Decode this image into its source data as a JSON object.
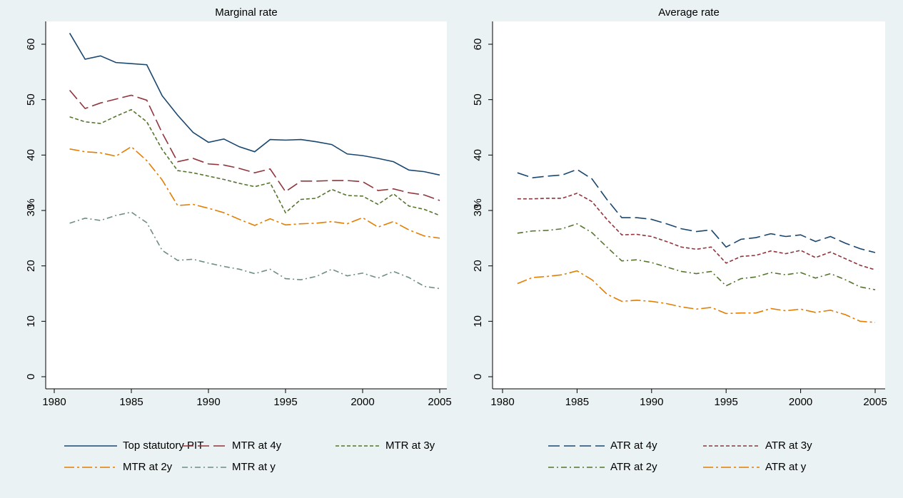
{
  "chart_data": [
    {
      "type": "line",
      "title": "Marginal rate",
      "ylabel": "%",
      "x": [
        1981,
        1982,
        1983,
        1984,
        1985,
        1986,
        1987,
        1988,
        1989,
        1990,
        1991,
        1992,
        1993,
        1994,
        1995,
        1996,
        1997,
        1998,
        1999,
        2000,
        2001,
        2002,
        2003,
        2004,
        2005
      ],
      "xlim": [
        1980,
        2005
      ],
      "ylim": [
        0,
        60
      ],
      "xticks": [
        1980,
        1985,
        1990,
        1995,
        2000,
        2005
      ],
      "yticks": [
        0,
        10,
        20,
        30,
        40,
        50,
        60
      ],
      "series": [
        {
          "name": "Top statutory PIT",
          "color": "#1a476f",
          "dash": "solid",
          "values": [
            62,
            57.3,
            57.9,
            56.7,
            56.5,
            56.3,
            50.7,
            47.2,
            44.1,
            42.3,
            42.9,
            41.5,
            40.6,
            42.8,
            42.7,
            42.8,
            42.4,
            41.9,
            40.2,
            39.9,
            39.4,
            38.8,
            37.3,
            37.0,
            36.4
          ]
        },
        {
          "name": "MTR at 4y",
          "color": "#90353b",
          "dash": "longdash",
          "values": [
            51.7,
            48.4,
            49.4,
            50.1,
            50.8,
            49.9,
            44.0,
            38.8,
            39.4,
            38.4,
            38.2,
            37.6,
            36.8,
            37.5,
            33.4,
            35.3,
            35.3,
            35.4,
            35.4,
            35.2,
            33.6,
            33.9,
            33.2,
            32.8,
            31.8
          ]
        },
        {
          "name": "MTR at 3y",
          "color": "#55752f",
          "dash": "dash",
          "values": [
            46.9,
            46.0,
            45.7,
            47.0,
            48.2,
            46.0,
            41.0,
            37.2,
            36.8,
            36.2,
            35.6,
            34.9,
            34.3,
            35.0,
            29.6,
            32.0,
            32.2,
            33.8,
            32.7,
            32.6,
            31.1,
            33.0,
            30.8,
            30.2,
            29.1
          ]
        },
        {
          "name": "MTR at 2y",
          "color": "#e37e00",
          "dash": "longdashdot",
          "values": [
            41.1,
            40.6,
            40.4,
            39.8,
            41.5,
            39.0,
            35.5,
            30.9,
            31.1,
            30.4,
            29.6,
            28.4,
            27.3,
            28.5,
            27.4,
            27.6,
            27.7,
            28.0,
            27.6,
            28.7,
            27.0,
            28.0,
            26.5,
            25.4,
            25.0
          ]
        },
        {
          "name": "MTR at y",
          "color": "#6e8e84",
          "dash": "dashdot",
          "values": [
            27.7,
            28.6,
            28.2,
            29.1,
            29.7,
            27.8,
            22.8,
            21.0,
            21.2,
            20.5,
            19.9,
            19.4,
            18.6,
            19.4,
            17.7,
            17.5,
            18.1,
            19.4,
            18.2,
            18.7,
            17.8,
            19.0,
            17.9,
            16.3,
            15.9
          ]
        }
      ]
    },
    {
      "type": "line",
      "title": "Average rate",
      "ylabel": "%",
      "x": [
        1981,
        1982,
        1983,
        1984,
        1985,
        1986,
        1987,
        1988,
        1989,
        1990,
        1991,
        1992,
        1993,
        1994,
        1995,
        1996,
        1997,
        1998,
        1999,
        2000,
        2001,
        2002,
        2003,
        2004,
        2005
      ],
      "xlim": [
        1980,
        2005
      ],
      "ylim": [
        0,
        60
      ],
      "xticks": [
        1980,
        1985,
        1990,
        1995,
        2000,
        2005
      ],
      "yticks": [
        0,
        10,
        20,
        30,
        40,
        50,
        60
      ],
      "series": [
        {
          "name": "ATR at 4y",
          "color": "#1a476f",
          "dash": "longdash",
          "values": [
            36.8,
            35.9,
            36.2,
            36.4,
            37.4,
            35.7,
            32.0,
            28.7,
            28.7,
            28.4,
            27.6,
            26.7,
            26.2,
            26.5,
            23.4,
            24.8,
            25.1,
            25.8,
            25.3,
            25.6,
            24.4,
            25.3,
            24.1,
            23.1,
            22.4
          ]
        },
        {
          "name": "ATR at 3y",
          "color": "#90353b",
          "dash": "dash",
          "values": [
            32.1,
            32.1,
            32.2,
            32.2,
            33.1,
            31.6,
            28.4,
            25.6,
            25.7,
            25.3,
            24.4,
            23.4,
            23.0,
            23.4,
            20.5,
            21.7,
            21.9,
            22.7,
            22.2,
            22.8,
            21.5,
            22.5,
            21.3,
            20.1,
            19.3
          ]
        },
        {
          "name": "ATR at 2y",
          "color": "#55752f",
          "dash": "dashdot",
          "values": [
            25.9,
            26.3,
            26.4,
            26.7,
            27.6,
            26.0,
            23.4,
            20.9,
            21.1,
            20.6,
            19.8,
            19.0,
            18.6,
            19.0,
            16.4,
            17.7,
            18.0,
            18.8,
            18.4,
            18.8,
            17.8,
            18.6,
            17.5,
            16.2,
            15.7
          ]
        },
        {
          "name": "ATR at y",
          "color": "#e37e00",
          "dash": "longdashdot",
          "values": [
            16.8,
            17.9,
            18.1,
            18.4,
            19.1,
            17.5,
            14.9,
            13.6,
            13.8,
            13.6,
            13.2,
            12.6,
            12.2,
            12.5,
            11.4,
            11.5,
            11.5,
            12.3,
            11.9,
            12.2,
            11.6,
            12.0,
            11.2,
            10.0,
            9.8
          ]
        }
      ]
    }
  ]
}
